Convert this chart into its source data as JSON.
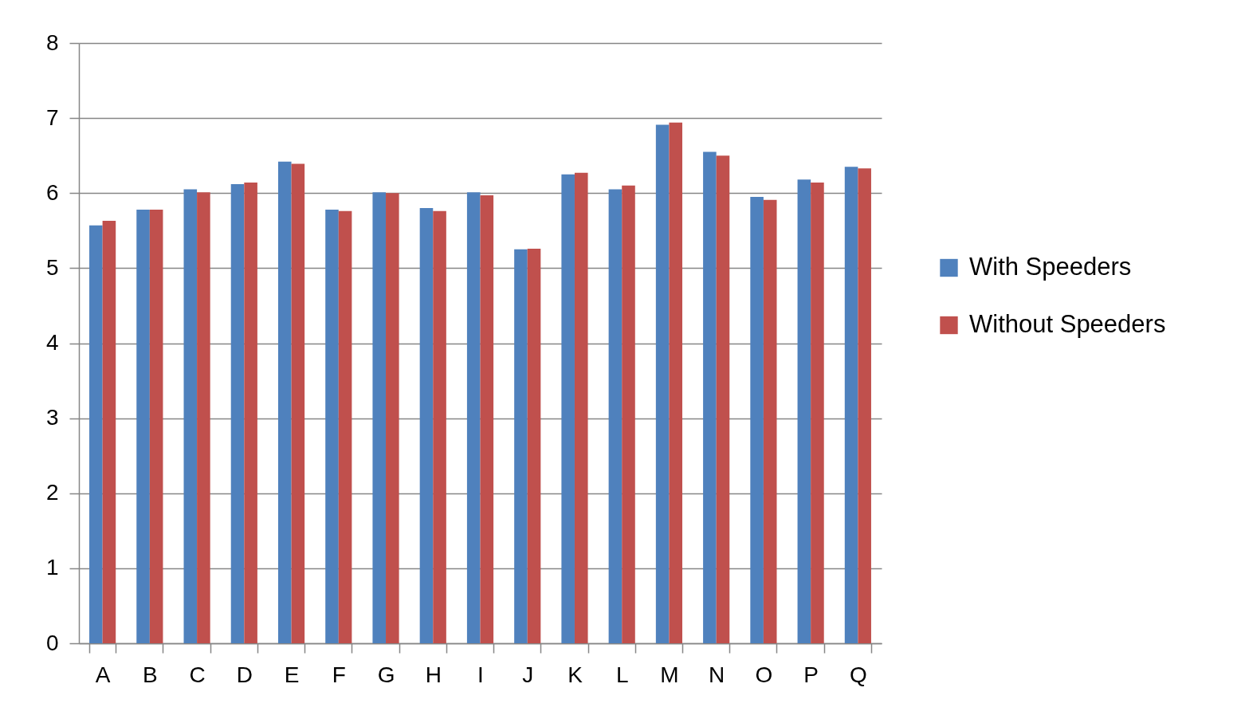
{
  "chart_data": {
    "type": "bar",
    "categories": [
      "A",
      "B",
      "C",
      "D",
      "E",
      "F",
      "G",
      "H",
      "I",
      "J",
      "K",
      "L",
      "M",
      "N",
      "O",
      "P",
      "Q"
    ],
    "series": [
      {
        "name": "With Speeders",
        "color": "#4f81bd",
        "values": [
          5.57,
          5.78,
          6.05,
          6.12,
          6.42,
          5.78,
          6.01,
          5.8,
          6.01,
          5.25,
          6.25,
          6.05,
          6.91,
          6.55,
          5.95,
          6.18,
          6.35
        ]
      },
      {
        "name": "Without Speeders",
        "color": "#c0504d",
        "values": [
          5.63,
          5.78,
          6.01,
          6.14,
          6.39,
          5.76,
          6.0,
          5.76,
          5.97,
          5.26,
          6.27,
          6.1,
          6.94,
          6.5,
          5.91,
          6.14,
          6.33
        ]
      }
    ],
    "ylim": [
      0,
      8
    ],
    "yticks": [
      0,
      1,
      2,
      3,
      4,
      5,
      6,
      7,
      8
    ],
    "grid": "y",
    "legend": "right"
  }
}
